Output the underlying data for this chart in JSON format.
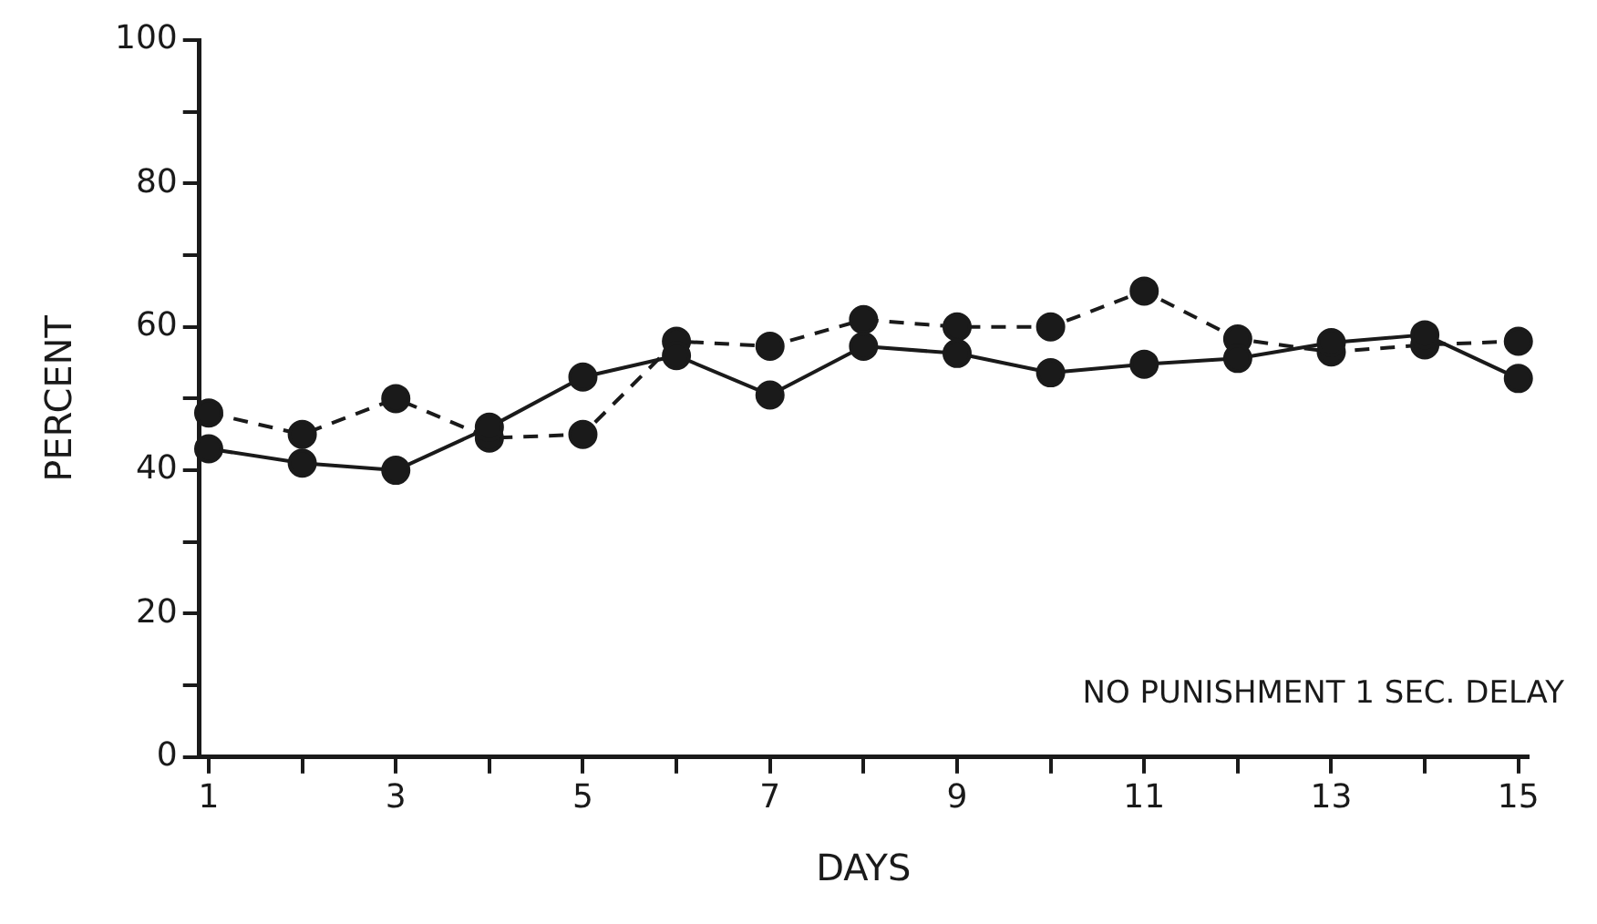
{
  "chart_data": {
    "type": "line",
    "xlabel": "DAYS",
    "ylabel": "PERCENT",
    "annotations": [
      "NO PUNISHMENT 1 SEC. DELAY"
    ],
    "x": [
      1,
      2,
      3,
      4,
      5,
      6,
      7,
      8,
      9,
      10,
      11,
      12,
      13,
      14,
      15
    ],
    "series": [
      {
        "color": "#1a1a1a",
        "line_style": "solid",
        "values": [
          43,
          41,
          40,
          46,
          53,
          56,
          50.5,
          57.3,
          56.3,
          53.6,
          54.8,
          55.6,
          57.8,
          58.9,
          52.8
        ]
      },
      {
        "color": "#1a1a1a",
        "line_style": "dashed",
        "values": [
          48,
          45,
          50,
          44.5,
          45,
          58,
          57.3,
          61,
          60,
          60,
          65,
          58.3,
          56.5,
          57.5,
          58
        ]
      }
    ],
    "xlim": [
      0.9,
      15.1
    ],
    "xticks": [
      1,
      {
        "value": 2,
        "label": null
      },
      3,
      {
        "value": 4,
        "label": null
      },
      5,
      {
        "value": 6,
        "label": null
      },
      7,
      {
        "value": 8,
        "label": null
      },
      9,
      {
        "value": 10,
        "label": null
      },
      11,
      {
        "value": 12,
        "label": null
      },
      13,
      {
        "value": 14,
        "label": null
      },
      15
    ],
    "ylim": [
      0,
      100
    ],
    "yticks": [
      0,
      {
        "value": 10,
        "label": null
      },
      20,
      {
        "value": 30,
        "label": null
      },
      40,
      {
        "value": 50,
        "label": null
      },
      60,
      {
        "value": 70,
        "label": null
      },
      80,
      {
        "value": 90,
        "label": null
      },
      100
    ],
    "grid": false,
    "legend": false,
    "marker": "circle"
  }
}
